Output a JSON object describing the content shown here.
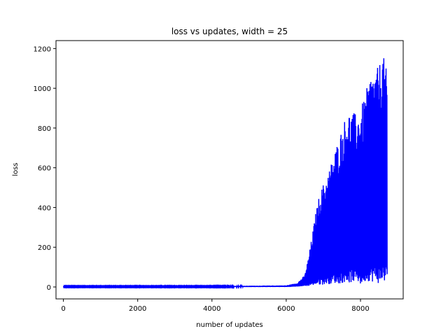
{
  "chart_data": {
    "type": "line",
    "title": "loss vs updates, width = 25",
    "xlabel": "number of updates",
    "ylabel": "loss",
    "xlim": [
      -200,
      9150
    ],
    "ylim": [
      -60,
      1240
    ],
    "xticks": [
      0,
      2000,
      4000,
      6000,
      8000
    ],
    "yticks": [
      0,
      200,
      400,
      600,
      800,
      1000,
      1200
    ],
    "grid": false,
    "legend": "none",
    "series": [
      {
        "color": "#0000ff",
        "x_range": [
          0,
          8720
        ],
        "description_points": {
          "x": [
            0,
            2000,
            4000,
            6000,
            6300,
            6500,
            6600,
            6700,
            6800,
            6900,
            7000,
            7100,
            7200,
            7300,
            7400,
            7500,
            7600,
            7700,
            7800,
            7900,
            8000,
            8100,
            8200,
            8300,
            8400,
            8500,
            8600,
            8700
          ],
          "max": [
            4,
            4,
            4,
            8,
            20,
            60,
            150,
            260,
            380,
            470,
            520,
            560,
            620,
            680,
            740,
            800,
            860,
            885,
            880,
            870,
            900,
            950,
            1020,
            1090,
            1080,
            1120,
            1180,
            1090
          ],
          "min": [
            0,
            0,
            0,
            0,
            2,
            5,
            5,
            8,
            10,
            10,
            12,
            15,
            15,
            20,
            15,
            20,
            25,
            20,
            25,
            30,
            10,
            25,
            30,
            25,
            30,
            15,
            25,
            30
          ]
        }
      }
    ]
  }
}
